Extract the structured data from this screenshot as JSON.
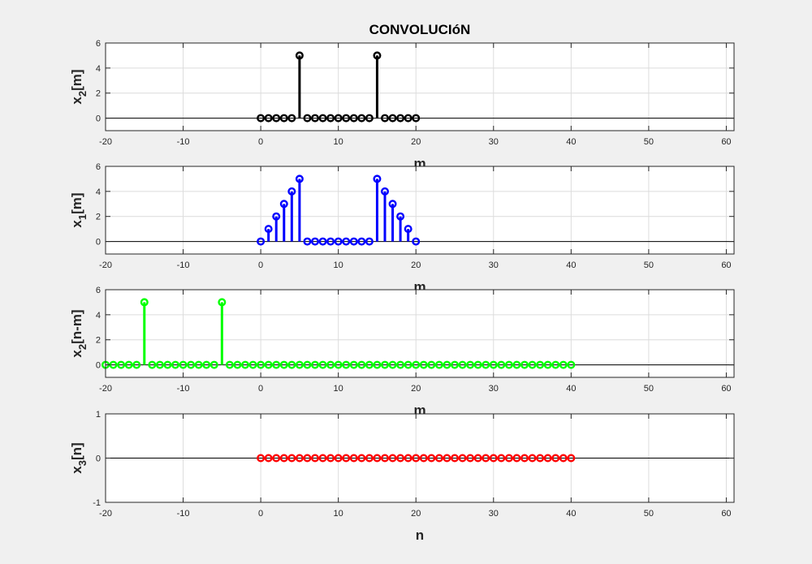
{
  "figure": {
    "background": "#f0f0f0",
    "axes_background": "#ffffff",
    "grid_color": "#dcdcdc",
    "axis_color": "#262626"
  },
  "chart_data": [
    {
      "type": "stem",
      "title": "CONVOLUCIóN",
      "xlabel": "m",
      "ylabel_main": "x",
      "ylabel_sub": "2",
      "ylabel_rest": "[m]",
      "color": "#000000",
      "xlim": [
        -20,
        61
      ],
      "ylim": [
        -1,
        6
      ],
      "xticks": [
        -20,
        -10,
        0,
        10,
        20,
        30,
        40,
        50,
        60
      ],
      "yticks": [
        0,
        2,
        4,
        6
      ],
      "grid": true,
      "x": [
        0,
        1,
        2,
        3,
        4,
        5,
        6,
        7,
        8,
        9,
        10,
        11,
        12,
        13,
        14,
        15,
        16,
        17,
        18,
        19,
        20
      ],
      "y": [
        0,
        0,
        0,
        0,
        0,
        5,
        0,
        0,
        0,
        0,
        0,
        0,
        0,
        0,
        0,
        5,
        0,
        0,
        0,
        0,
        0
      ]
    },
    {
      "type": "stem",
      "title": "",
      "xlabel": "m",
      "ylabel_main": "x",
      "ylabel_sub": "1",
      "ylabel_rest": "[m]",
      "color": "#0000ff",
      "xlim": [
        -20,
        61
      ],
      "ylim": [
        -1,
        6
      ],
      "xticks": [
        -20,
        -10,
        0,
        10,
        20,
        30,
        40,
        50,
        60
      ],
      "yticks": [
        0,
        2,
        4,
        6
      ],
      "grid": true,
      "x": [
        0,
        1,
        2,
        3,
        4,
        5,
        6,
        7,
        8,
        9,
        10,
        11,
        12,
        13,
        14,
        15,
        16,
        17,
        18,
        19,
        20
      ],
      "y": [
        0,
        1,
        2,
        3,
        4,
        5,
        0,
        0,
        0,
        0,
        0,
        0,
        0,
        0,
        0,
        5,
        4,
        3,
        2,
        1,
        0
      ]
    },
    {
      "type": "stem",
      "title": "",
      "xlabel": "m",
      "ylabel_main": "x",
      "ylabel_sub": "2",
      "ylabel_rest": "[n-m]",
      "color": "#00ff00",
      "xlim": [
        -20,
        61
      ],
      "ylim": [
        -1,
        6
      ],
      "xticks": [
        -20,
        -10,
        0,
        10,
        20,
        30,
        40,
        50,
        60
      ],
      "yticks": [
        0,
        2,
        4,
        6
      ],
      "grid": true,
      "x": [
        -20,
        -19,
        -18,
        -17,
        -16,
        -15,
        -14,
        -13,
        -12,
        -11,
        -10,
        -9,
        -8,
        -7,
        -6,
        -5,
        -4,
        -3,
        -2,
        -1,
        0,
        1,
        2,
        3,
        4,
        5,
        6,
        7,
        8,
        9,
        10,
        11,
        12,
        13,
        14,
        15,
        16,
        17,
        18,
        19,
        20,
        21,
        22,
        23,
        24,
        25,
        26,
        27,
        28,
        29,
        30,
        31,
        32,
        33,
        34,
        35,
        36,
        37,
        38,
        39,
        40
      ],
      "y": [
        0,
        0,
        0,
        0,
        0,
        5,
        0,
        0,
        0,
        0,
        0,
        0,
        0,
        0,
        0,
        5,
        0,
        0,
        0,
        0,
        0,
        0,
        0,
        0,
        0,
        0,
        0,
        0,
        0,
        0,
        0,
        0,
        0,
        0,
        0,
        0,
        0,
        0,
        0,
        0,
        0,
        0,
        0,
        0,
        0,
        0,
        0,
        0,
        0,
        0,
        0,
        0,
        0,
        0,
        0,
        0,
        0,
        0,
        0,
        0,
        0
      ]
    },
    {
      "type": "stem",
      "title": "",
      "xlabel": "n",
      "ylabel_main": "x",
      "ylabel_sub": "3",
      "ylabel_rest": "[n]",
      "color": "#ff0000",
      "xlim": [
        -20,
        61
      ],
      "ylim": [
        -1,
        1
      ],
      "xticks": [
        -20,
        -10,
        0,
        10,
        20,
        30,
        40,
        50,
        60
      ],
      "yticks": [
        -1,
        0,
        1
      ],
      "grid": true,
      "x": [
        0,
        1,
        2,
        3,
        4,
        5,
        6,
        7,
        8,
        9,
        10,
        11,
        12,
        13,
        14,
        15,
        16,
        17,
        18,
        19,
        20,
        21,
        22,
        23,
        24,
        25,
        26,
        27,
        28,
        29,
        30,
        31,
        32,
        33,
        34,
        35,
        36,
        37,
        38,
        39,
        40
      ],
      "y": [
        0,
        0,
        0,
        0,
        0,
        0,
        0,
        0,
        0,
        0,
        0,
        0,
        0,
        0,
        0,
        0,
        0,
        0,
        0,
        0,
        0,
        0,
        0,
        0,
        0,
        0,
        0,
        0,
        0,
        0,
        0,
        0,
        0,
        0,
        0,
        0,
        0,
        0,
        0,
        0,
        0
      ]
    }
  ]
}
